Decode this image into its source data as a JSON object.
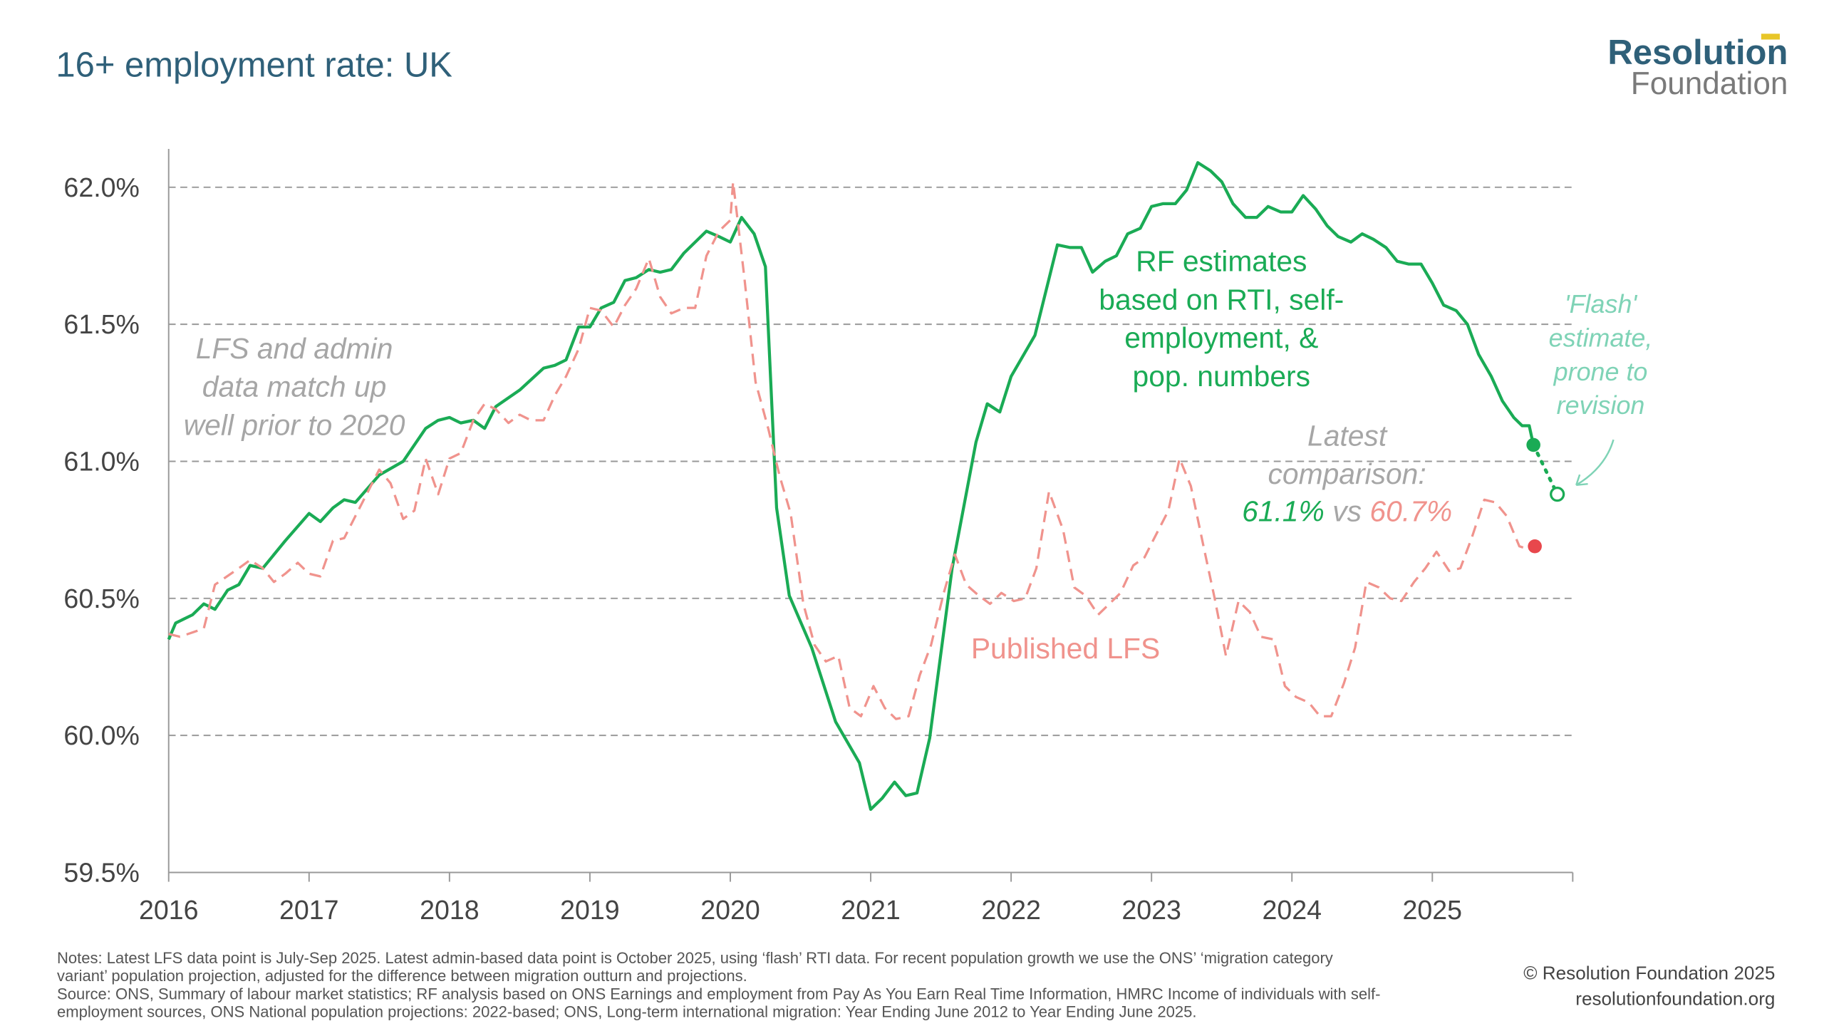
{
  "chart_data": {
    "type": "line",
    "title": "16+ employment rate: UK",
    "logo": {
      "line1": "Resolution",
      "line2": "Foundation"
    },
    "xlim": [
      2016,
      2026
    ],
    "xticks": [
      2016,
      2017,
      2018,
      2019,
      2020,
      2021,
      2022,
      2023,
      2024,
      2025
    ],
    "ylim": [
      59.5,
      62.14
    ],
    "yticks": [
      {
        "value": 59.5,
        "label": "59.5%"
      },
      {
        "value": 60,
        "label": "60.0%"
      },
      {
        "value": 60.5,
        "label": "60.5%"
      },
      {
        "value": 61,
        "label": "61.0%"
      },
      {
        "value": 61.5,
        "label": "61.5%"
      },
      {
        "value": 62,
        "label": "62.0%"
      }
    ],
    "grid": true,
    "series": [
      {
        "name": [
          "RF estimates",
          "based on RTI, self-",
          "employment, &",
          "pop. numbers"
        ],
        "color": "#1aab55",
        "dash": false,
        "x": [
          2016.0,
          2016.05,
          2016.17,
          2016.25,
          2016.33,
          2016.42,
          2016.5,
          2016.58,
          2016.67,
          2016.83,
          2017.0,
          2017.08,
          2017.17,
          2017.25,
          2017.33,
          2017.5,
          2017.67,
          2017.83,
          2017.92,
          2018.0,
          2018.08,
          2018.17,
          2018.25,
          2018.33,
          2018.5,
          2018.67,
          2018.75,
          2018.83,
          2018.92,
          2019.0,
          2019.08,
          2019.17,
          2019.25,
          2019.33,
          2019.42,
          2019.5,
          2019.58,
          2019.67,
          2019.83,
          2019.92,
          2020.0,
          2020.08,
          2020.17,
          2020.25,
          2020.33,
          2020.42,
          2020.58,
          2020.75,
          2020.92,
          2021.0,
          2021.08,
          2021.17,
          2021.25,
          2021.33,
          2021.42,
          2021.58,
          2021.75,
          2021.83,
          2021.92,
          2022.0,
          2022.17,
          2022.33,
          2022.42,
          2022.5,
          2022.58,
          2022.67,
          2022.75,
          2022.83,
          2022.92,
          2023.0,
          2023.08,
          2023.17,
          2023.25,
          2023.33,
          2023.42,
          2023.5,
          2023.58,
          2023.67,
          2023.75,
          2023.83,
          2023.92,
          2024.0,
          2024.08,
          2024.17,
          2024.25,
          2024.33,
          2024.42,
          2024.5,
          2024.58,
          2024.67,
          2024.75,
          2024.83,
          2024.92,
          2025.0,
          2025.08,
          2025.17,
          2025.25,
          2025.33,
          2025.42,
          2025.5,
          2025.58,
          2025.64,
          2025.69,
          2025.72
        ],
        "values": [
          60.35,
          60.41,
          60.44,
          60.48,
          60.46,
          60.53,
          60.55,
          60.62,
          60.61,
          60.71,
          60.81,
          60.78,
          60.83,
          60.86,
          60.85,
          60.95,
          61.0,
          61.12,
          61.15,
          61.16,
          61.14,
          61.15,
          61.12,
          61.2,
          61.26,
          61.34,
          61.35,
          61.37,
          61.49,
          61.49,
          61.56,
          61.58,
          61.66,
          61.67,
          61.7,
          61.69,
          61.7,
          61.76,
          61.84,
          61.82,
          61.8,
          61.89,
          61.83,
          61.71,
          60.83,
          60.51,
          60.32,
          60.05,
          59.9,
          59.73,
          59.77,
          59.83,
          59.78,
          59.79,
          59.99,
          60.61,
          61.07,
          61.21,
          61.18,
          61.31,
          61.46,
          61.79,
          61.78,
          61.78,
          61.69,
          61.73,
          61.75,
          61.83,
          61.85,
          61.93,
          61.94,
          61.94,
          61.99,
          62.09,
          62.06,
          62.02,
          61.94,
          61.89,
          61.89,
          61.93,
          61.91,
          61.91,
          61.97,
          61.92,
          61.86,
          61.82,
          61.8,
          61.83,
          61.81,
          61.78,
          61.73,
          61.72,
          61.72,
          61.65,
          61.57,
          61.55,
          61.5,
          61.39,
          61.31,
          61.22,
          61.16,
          61.13,
          61.13,
          61.06
        ]
      },
      {
        "name": [
          "Published LFS"
        ],
        "color": "#f0938d",
        "dash": true,
        "x": [
          2016.0,
          2016.08,
          2016.25,
          2016.33,
          2016.5,
          2016.58,
          2016.67,
          2016.75,
          2016.83,
          2016.92,
          2017.0,
          2017.08,
          2017.17,
          2017.25,
          2017.33,
          2017.5,
          2017.58,
          2017.67,
          2017.75,
          2017.83,
          2017.92,
          2018.0,
          2018.08,
          2018.17,
          2018.25,
          2018.33,
          2018.42,
          2018.5,
          2018.58,
          2018.67,
          2018.75,
          2018.83,
          2018.92,
          2019.0,
          2019.08,
          2019.17,
          2019.25,
          2019.33,
          2019.42,
          2019.5,
          2019.58,
          2019.67,
          2019.75,
          2019.83,
          2019.92,
          2020.0,
          2020.02,
          2020.1,
          2020.18,
          2020.27,
          2020.35,
          2020.43,
          2020.52,
          2020.6,
          2020.68,
          2020.77,
          2020.85,
          2020.93,
          2021.02,
          2021.1,
          2021.18,
          2021.27,
          2021.35,
          2021.43,
          2021.52,
          2021.6,
          2021.68,
          2021.77,
          2021.85,
          2021.93,
          2022.02,
          2022.1,
          2022.18,
          2022.27,
          2022.37,
          2022.45,
          2022.53,
          2022.62,
          2022.7,
          2022.78,
          2022.87,
          2022.95,
          2023.03,
          2023.12,
          2023.2,
          2023.28,
          2023.37,
          2023.45,
          2023.53,
          2023.62,
          2023.7,
          2023.78,
          2023.87,
          2023.95,
          2024.03,
          2024.12,
          2024.2,
          2024.28,
          2024.37,
          2024.45,
          2024.53,
          2024.62,
          2024.7,
          2024.78,
          2024.87,
          2024.95,
          2025.03,
          2025.12,
          2025.2,
          2025.28,
          2025.37,
          2025.45,
          2025.53,
          2025.62,
          2025.68
        ],
        "values": [
          60.37,
          60.36,
          60.39,
          60.55,
          60.61,
          60.64,
          60.61,
          60.56,
          60.59,
          60.63,
          60.59,
          60.58,
          60.71,
          60.72,
          60.8,
          60.97,
          60.92,
          60.79,
          60.82,
          61.01,
          60.88,
          61.01,
          61.03,
          61.15,
          61.21,
          61.19,
          61.14,
          61.17,
          61.15,
          61.15,
          61.24,
          61.31,
          61.41,
          61.56,
          61.55,
          61.49,
          61.57,
          61.63,
          61.74,
          61.6,
          61.54,
          61.56,
          61.56,
          61.75,
          61.84,
          61.88,
          62.02,
          61.67,
          61.29,
          61.12,
          60.95,
          60.81,
          60.48,
          60.33,
          60.27,
          60.29,
          60.1,
          60.07,
          60.18,
          60.1,
          60.06,
          60.07,
          60.22,
          60.33,
          60.52,
          60.66,
          60.55,
          60.51,
          60.48,
          60.52,
          60.49,
          60.5,
          60.61,
          60.89,
          60.75,
          60.54,
          60.51,
          60.44,
          60.48,
          60.52,
          60.62,
          60.65,
          60.73,
          60.82,
          61.01,
          60.91,
          60.69,
          60.5,
          60.29,
          60.49,
          60.45,
          60.36,
          60.35,
          60.18,
          60.14,
          60.12,
          60.07,
          60.07,
          60.19,
          60.32,
          60.56,
          60.54,
          60.5,
          60.49,
          60.56,
          60.61,
          60.67,
          60.6,
          60.61,
          60.72,
          60.86,
          60.85,
          60.8,
          60.69,
          60.68
        ]
      }
    ],
    "latest_points": [
      {
        "x": 2025.72,
        "value": 61.06,
        "color": "#1aab55"
      },
      {
        "x": 2025.73,
        "value": 60.69,
        "color": "#e8474c"
      }
    ],
    "flash": {
      "x": 2025.89,
      "value": 60.88,
      "color": "#1aab55",
      "label": [
        "'Flash'",
        "estimate,",
        "prone to",
        "revision"
      ]
    },
    "annotations": {
      "match": [
        "LFS and admin",
        "data match up",
        "well prior to 2020"
      ],
      "latest": [
        "Latest",
        "comparison:"
      ],
      "rf_value": "61.1%",
      "vs": "vs",
      "lfs_value": "60.7%"
    },
    "notes": [
      "Notes: Latest LFS data point is July-Sep 2025. Latest admin-based data point is October 2025, using ‘flash’ RTI data. For recent population growth we use the ONS’ ‘migration category",
      "variant’ population projection, adjusted for the difference between migration outturn and projections.",
      "Source: ONS, Summary of labour market statistics; RF analysis based on ONS Earnings and employment from Pay As You Earn Real Time Information, HMRC Income of individuals with self-",
      "employment sources, ONS National population projections: 2022-based; ONS, Long-term international migration: Year Ending June 2012 to Year Ending June 2025."
    ],
    "copyright": "© Resolution Foundation 2025",
    "url": "resolutionfoundation.org"
  }
}
